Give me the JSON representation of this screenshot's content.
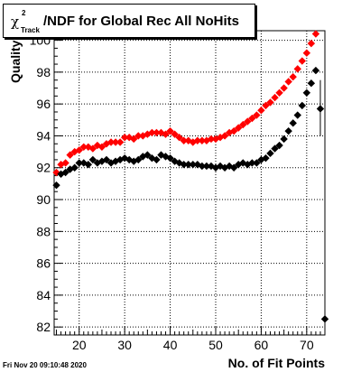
{
  "title": {
    "chi_symbol": "χ",
    "superscript": "2",
    "subscript": "Track",
    "main": "/NDF for Global Rec All NoHits"
  },
  "timestamp": "Fri Nov 20 09:10:48 2020",
  "chart_data": {
    "type": "scatter",
    "title": "χ²_Track/NDF for Global Rec All NoHits",
    "xlabel": "No. of Fit Points",
    "ylabel": "Quality",
    "xlim": [
      14.5,
      74
    ],
    "ylim": [
      81.5,
      100.6
    ],
    "xticks": [
      20,
      30,
      40,
      50,
      60,
      70
    ],
    "yticks": [
      82,
      84,
      86,
      88,
      90,
      92,
      94,
      96,
      98,
      100
    ],
    "grid": true,
    "legend": "none",
    "series": [
      {
        "color": "#ff0000",
        "x": [
          15,
          16,
          17,
          18,
          19,
          20,
          21,
          22,
          23,
          24,
          25,
          26,
          27,
          28,
          29,
          30,
          31,
          32,
          33,
          34,
          35,
          36,
          37,
          38,
          39,
          40,
          41,
          42,
          43,
          44,
          45,
          46,
          47,
          48,
          49,
          50,
          51,
          52,
          53,
          54,
          55,
          56,
          57,
          58,
          59,
          60,
          61,
          62,
          63,
          64,
          65,
          66,
          67,
          68,
          69,
          70,
          71,
          72
        ],
        "values": [
          91.7,
          92.2,
          92.3,
          92.8,
          93.0,
          93.1,
          93.3,
          93.3,
          93.2,
          93.4,
          93.3,
          93.5,
          93.6,
          93.6,
          93.6,
          93.9,
          93.9,
          93.8,
          94.0,
          94.0,
          94.1,
          94.2,
          94.2,
          94.2,
          94.1,
          94.3,
          94.1,
          93.9,
          93.7,
          93.7,
          93.6,
          93.7,
          93.7,
          93.7,
          93.8,
          93.8,
          93.9,
          94.0,
          94.2,
          94.3,
          94.5,
          94.7,
          94.9,
          95.1,
          95.3,
          95.6,
          95.9,
          96.1,
          96.4,
          96.7,
          97.0,
          97.4,
          97.7,
          98.2,
          98.7,
          99.2,
          99.8,
          100.4
        ]
      },
      {
        "color": "#000000",
        "x": [
          15,
          16,
          17,
          18,
          19,
          20,
          21,
          22,
          23,
          24,
          25,
          26,
          27,
          28,
          29,
          30,
          31,
          32,
          33,
          34,
          35,
          36,
          37,
          38,
          39,
          40,
          41,
          42,
          43,
          44,
          45,
          46,
          47,
          48,
          49,
          50,
          51,
          52,
          53,
          54,
          55,
          56,
          57,
          58,
          59,
          60,
          61,
          62,
          63,
          64,
          65,
          66,
          67,
          68,
          69,
          70,
          71,
          72,
          73,
          74
        ],
        "values": [
          90.9,
          91.6,
          91.7,
          91.9,
          92.0,
          92.3,
          92.3,
          92.2,
          92.5,
          92.3,
          92.4,
          92.5,
          92.3,
          92.4,
          92.5,
          92.6,
          92.5,
          92.4,
          92.5,
          92.7,
          92.8,
          92.6,
          92.5,
          92.8,
          92.7,
          92.6,
          92.4,
          92.3,
          92.2,
          92.2,
          92.2,
          92.2,
          92.1,
          92.1,
          92.1,
          92.0,
          92.1,
          92.0,
          92.1,
          92.0,
          92.2,
          92.3,
          92.2,
          92.3,
          92.3,
          92.5,
          92.6,
          92.9,
          93.2,
          93.4,
          93.8,
          94.3,
          94.8,
          95.3,
          95.9,
          96.7,
          97.3,
          98.1,
          95.7,
          82.5
        ]
      }
    ],
    "error_bar": {
      "x": 73,
      "low": 94.0,
      "high": 97.5
    }
  }
}
